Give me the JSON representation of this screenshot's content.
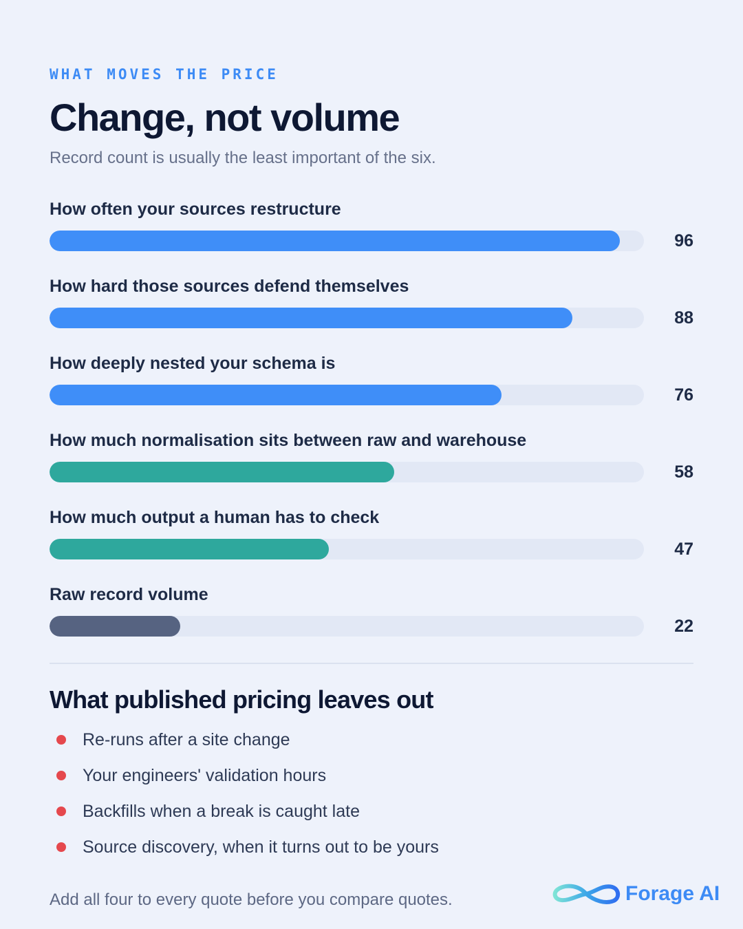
{
  "header": {
    "eyebrow": "WHAT MOVES THE PRICE",
    "title": "Change, not volume",
    "subtitle": "Record count is usually the least important of the six."
  },
  "chart_data": {
    "type": "bar",
    "orientation": "horizontal",
    "categories": [
      "How often your sources restructure",
      "How hard those sources defend themselves",
      "How deeply nested your schema is",
      "How much normalisation sits between raw and warehouse",
      "How much output a human has to check",
      "Raw record volume"
    ],
    "values": [
      96,
      88,
      76,
      58,
      47,
      22
    ],
    "value_labels": [
      "96",
      "88",
      "76",
      "58",
      "47",
      "22"
    ],
    "bar_colors": [
      "#3f8ef8",
      "#3f8ef8",
      "#3f8ef8",
      "#2ea89d",
      "#2ea89d",
      "#566381"
    ],
    "track_color": "#e2e8f5",
    "xlim": [
      0,
      100
    ],
    "grid": false
  },
  "section": {
    "title": "What published pricing leaves out",
    "bullet_color": "#e5484d",
    "items": [
      "Re-runs after a site change",
      "Your engineers' validation hours",
      "Backfills when a break is caught late",
      "Source discovery, when it turns out to be yours"
    ]
  },
  "footer": {
    "note": "Add all four to every quote before you compare quotes.",
    "brand": "Forage AI",
    "logo_icon": "infinity-loop-icon",
    "brand_color": "#3d8bf5"
  }
}
